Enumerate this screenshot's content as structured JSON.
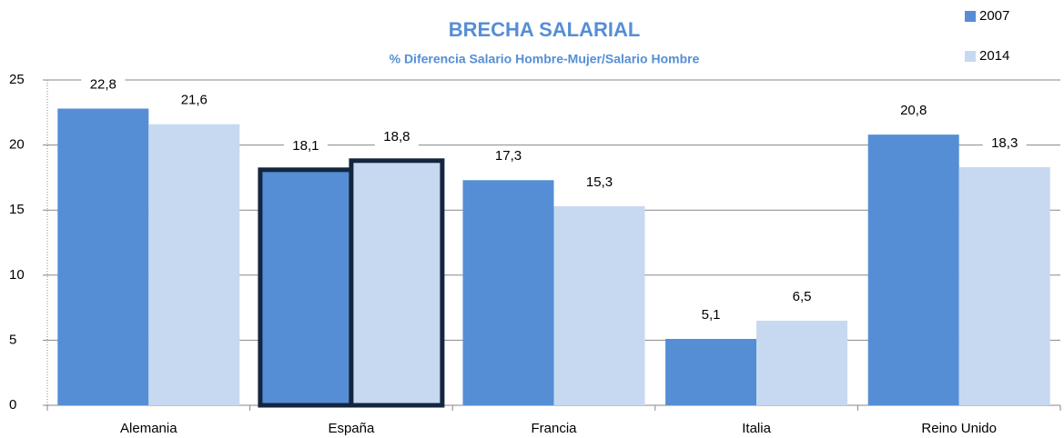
{
  "chart_data": {
    "type": "bar",
    "title": "BRECHA SALARIAL",
    "subtitle": "% Diferencia Salario Hombre-Mujer/Salario Hombre",
    "categories": [
      "Alemania",
      "España",
      "Francia",
      "Italia",
      "Reino Unido"
    ],
    "series": [
      {
        "name": "2007",
        "color": "#558ed5",
        "values": [
          22.8,
          18.1,
          17.3,
          5.1,
          20.8
        ],
        "value_labels": [
          "22,8",
          "18,1",
          "17,3",
          "5,1",
          "20,8"
        ]
      },
      {
        "name": "2014",
        "color": "#c6d9f1",
        "values": [
          21.6,
          18.8,
          15.3,
          6.5,
          18.3
        ],
        "value_labels": [
          "21,6",
          "18,8",
          "15,3",
          "6,5",
          "18,3"
        ]
      }
    ],
    "ylim": [
      0,
      25
    ],
    "yticks": [
      0,
      5,
      10,
      15,
      20,
      25
    ],
    "grid": true,
    "legend": "top-right",
    "highlight": {
      "category_index": 1,
      "stroke": "#14263f"
    }
  }
}
